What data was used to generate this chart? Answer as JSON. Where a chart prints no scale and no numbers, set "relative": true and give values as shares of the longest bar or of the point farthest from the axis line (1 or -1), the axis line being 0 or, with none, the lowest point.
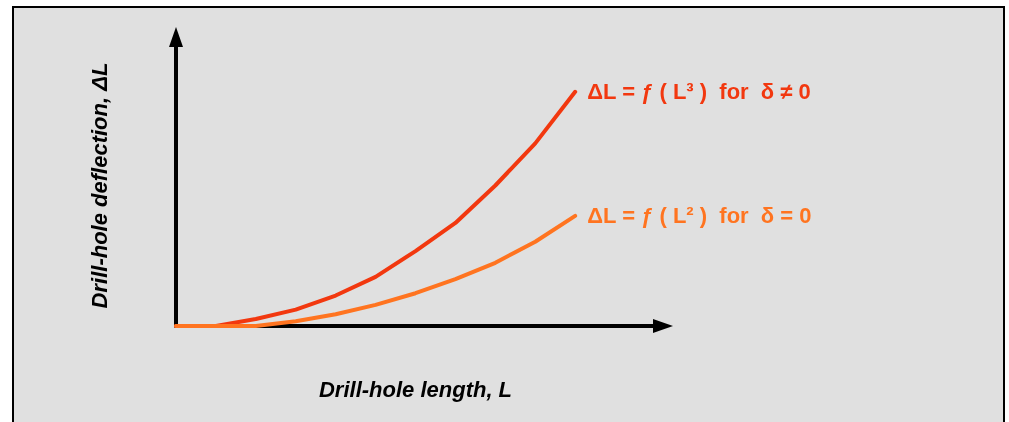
{
  "chart_data": {
    "type": "line",
    "relative": true,
    "xlabel": "Drill-hole length, L",
    "ylabel": "Drill-hole deflection, ΔL",
    "categories": [
      null,
      null,
      null,
      null,
      null,
      null,
      null,
      null,
      null,
      null,
      null,
      null,
      null
    ],
    "legend": false,
    "marker": "none",
    "line_style": "solid",
    "series": [
      {
        "name": "ΔL = ƒ ( L³ )  for  δ ≠ 0",
        "color": "#f2380f",
        "values": [
          0,
          0,
          0.03,
          0.07,
          0.13,
          0.21,
          0.32,
          0.44,
          0.6,
          0.78,
          1,
          null,
          null
        ]
      },
      {
        "name": "ΔL = ƒ ( L² )  for  δ = 0",
        "color": "#ff7420",
        "values": [
          0,
          0,
          0,
          0.02,
          0.05,
          0.09,
          0.14,
          0.2,
          0.27,
          0.36,
          0.47,
          null,
          null
        ]
      }
    ]
  }
}
